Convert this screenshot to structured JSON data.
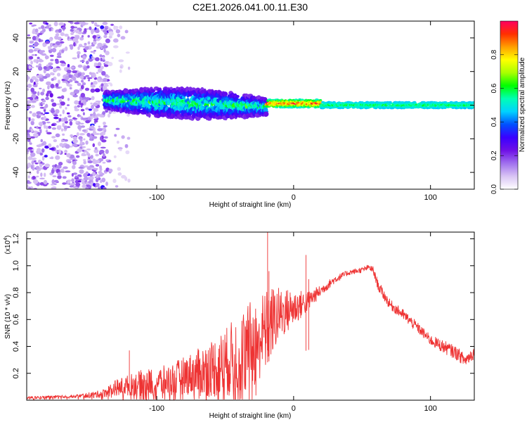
{
  "title": "C2E1.2026.041.00.11.E30",
  "chart_data": [
    {
      "type": "heatmap",
      "name": "spectrogram",
      "xlabel": "Height of straight line (km)",
      "ylabel": "Frequency (Hz)",
      "xlim": [
        -195,
        132
      ],
      "ylim": [
        -50,
        50
      ],
      "xticks": [
        -100,
        0,
        100
      ],
      "yticks": [
        -40,
        -20,
        0,
        20,
        40
      ],
      "grid": false,
      "colorbar": {
        "label": "Normalized spectral amplitude",
        "range": [
          0,
          1
        ],
        "ticks": [
          "0.0",
          "0.2",
          "0.4",
          "0.6",
          "0.8"
        ],
        "tick_values": [
          0,
          0.2,
          0.4,
          0.6,
          0.8
        ],
        "colors": [
          "#ffffff",
          "#d9c4f4",
          "#a070ee",
          "#6f10e6",
          "#3a00ff",
          "#0050ff",
          "#00d2ff",
          "#00ffb4",
          "#00ff00",
          "#a8ff00",
          "#ffff00",
          "#ffa000",
          "#ff3000",
          "#ff0060"
        ]
      },
      "regions": [
        {
          "desc": "scattered weak noise",
          "x": [
            -195,
            -135
          ],
          "freq": [
            -50,
            50
          ],
          "amp": [
            0.08,
            0.2
          ]
        },
        {
          "desc": "sparse speckle",
          "x": [
            -135,
            -120
          ],
          "freq": [
            -50,
            50
          ],
          "amp": [
            0.05,
            0.12
          ]
        },
        {
          "desc": "broad signal band",
          "x": [
            -138,
            -20
          ],
          "center_hz": [
            3,
            -1
          ],
          "half_width_hz": [
            4,
            8
          ],
          "amp": [
            0.2,
            0.6
          ]
        },
        {
          "desc": "narrow line with peaks",
          "x": [
            -20,
            20
          ],
          "center_hz": 1,
          "half_width_hz": 2,
          "amp": [
            0.5,
            0.95
          ]
        },
        {
          "desc": "steady narrow line",
          "x": [
            20,
            132
          ],
          "center_hz": 0,
          "half_width_hz": 1.5,
          "amp": [
            0.45,
            0.6
          ]
        }
      ]
    },
    {
      "type": "line",
      "name": "snr",
      "xlabel": "Height of straight line (km)",
      "ylabel": "SNR (10 * v/v)",
      "y_multiplier": "(x10",
      "y_multiplier_exp": "4",
      "y_multiplier_close": ")",
      "xlim": [
        -195,
        132
      ],
      "ylim": [
        0,
        1.25
      ],
      "xticks": [
        -100,
        0,
        100
      ],
      "yticks": [
        0.2,
        0.4,
        0.6,
        0.8,
        1.0,
        1.2
      ],
      "ytick_labels": [
        "0.2",
        "0.4",
        "0.6",
        "0.8",
        "1.0",
        "1.2"
      ],
      "grid": false,
      "color": "#ee3333",
      "series": [
        {
          "name": "SNR",
          "x": [
            -195,
            -160,
            -140,
            -130,
            -110,
            -90,
            -80,
            -70,
            -60,
            -50,
            -40,
            -30,
            -20,
            -15,
            -10,
            0,
            10,
            20,
            30,
            40,
            50,
            55,
            58,
            62,
            70,
            80,
            90,
            100,
            110,
            120,
            125,
            132
          ],
          "values": [
            0.02,
            0.03,
            0.05,
            0.1,
            0.14,
            0.16,
            0.2,
            0.22,
            0.26,
            0.3,
            0.38,
            0.45,
            0.55,
            0.62,
            0.66,
            0.7,
            0.74,
            0.82,
            0.9,
            0.95,
            0.97,
            0.99,
            0.97,
            0.85,
            0.72,
            0.64,
            0.55,
            0.45,
            0.4,
            0.35,
            0.3,
            0.36
          ],
          "noise": [
            0.01,
            0.01,
            0.03,
            0.06,
            0.1,
            0.12,
            0.14,
            0.18,
            0.22,
            0.26,
            0.3,
            0.34,
            0.3,
            0.26,
            0.2,
            0.14,
            0.08,
            0.04,
            0.03,
            0.02,
            0.02,
            0.02,
            0.03,
            0.04,
            0.04,
            0.04,
            0.04,
            0.04,
            0.05,
            0.05,
            0.05,
            0.05
          ]
        }
      ],
      "annotations": [
        {
          "x": -19,
          "y": 1.25,
          "desc": "spike"
        },
        {
          "x": -18,
          "y": 0.96
        },
        {
          "x": 9,
          "y": 1.08
        },
        {
          "x": 11,
          "y": 0.9
        },
        {
          "x": -120,
          "y": 0.37
        }
      ]
    }
  ]
}
